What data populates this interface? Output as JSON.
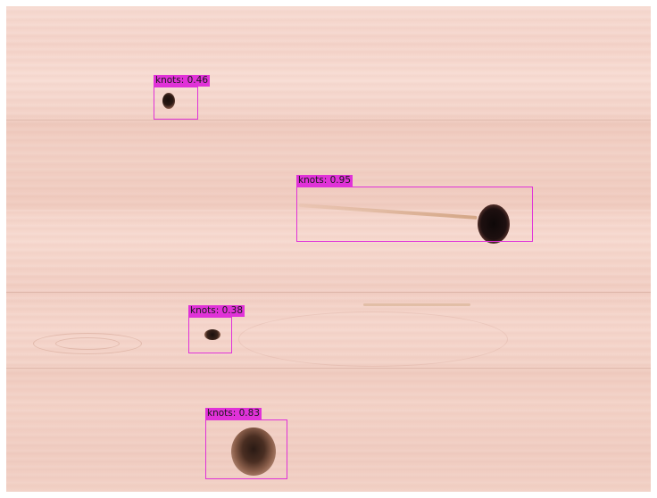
{
  "image": {
    "subject": "wood-board-with-knots",
    "box_color": "#e032d8"
  },
  "detections": [
    {
      "class_name": "knots",
      "score": "0.46",
      "label": "knots: 0.46"
    },
    {
      "class_name": "knots",
      "score": "0.95",
      "label": "knots: 0.95"
    },
    {
      "class_name": "knots",
      "score": "0.38",
      "label": "knots: 0.38"
    },
    {
      "class_name": "knots",
      "score": "0.83",
      "label": "knots: 0.83"
    }
  ]
}
